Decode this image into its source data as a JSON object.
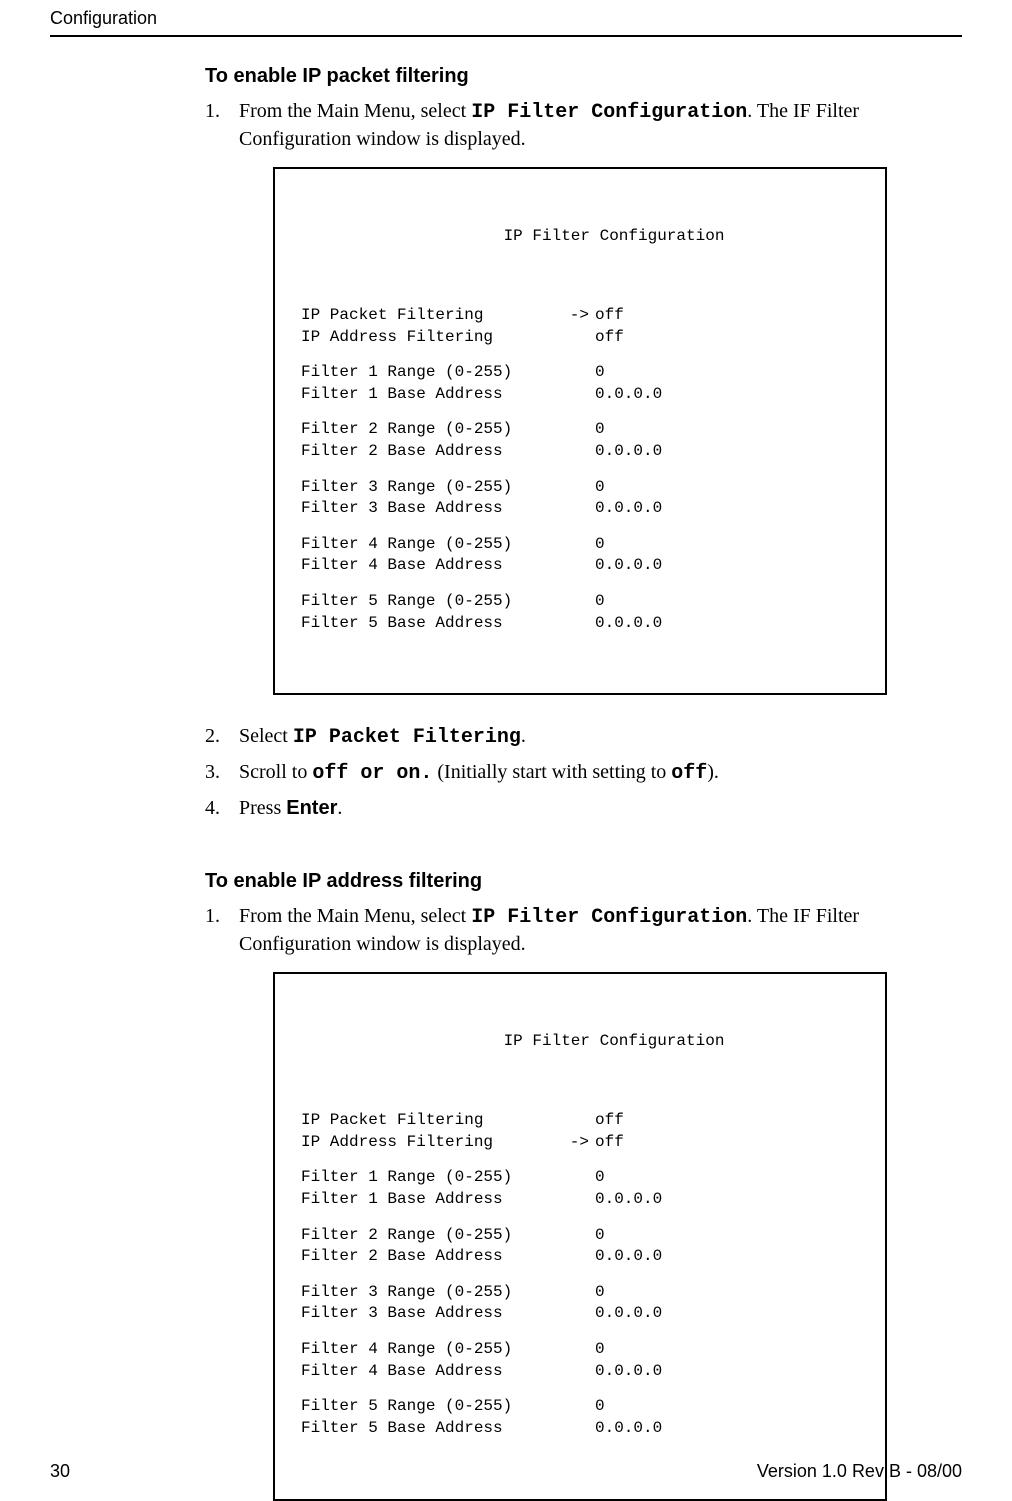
{
  "header": {
    "running_title": "Configuration"
  },
  "section1": {
    "title": "To enable IP packet filtering",
    "step1_a": "From the Main Menu, select ",
    "step1_b": "IP Filter Configuration",
    "step1_c": ". The IF Filter Configuration window is displayed.",
    "step2_a": "Select ",
    "step2_b": "IP Packet Filtering",
    "step2_c": ".",
    "step3_a": "Scroll to ",
    "step3_b": "off",
    "step3_c": " or ",
    "step3_d": "on.",
    "step3_e": " (Initially start with setting to ",
    "step3_f": "off",
    "step3_g": ").",
    "step4_a": "Press ",
    "step4_b": "Enter",
    "step4_c": "."
  },
  "terminal1": {
    "title": "IP Filter Configuration",
    "rows": [
      {
        "label": "IP Packet Filtering",
        "arrow": "->",
        "value": "off"
      },
      {
        "label": "IP Address Filtering",
        "arrow": "",
        "value": "off"
      },
      {
        "gap": true
      },
      {
        "label": "Filter 1 Range (0-255)",
        "arrow": "",
        "value": "0"
      },
      {
        "label": "Filter 1 Base Address",
        "arrow": "",
        "value": "0.0.0.0"
      },
      {
        "gap": true
      },
      {
        "label": "Filter 2 Range (0-255)",
        "arrow": "",
        "value": "0"
      },
      {
        "label": "Filter 2 Base Address",
        "arrow": "",
        "value": "0.0.0.0"
      },
      {
        "gap": true
      },
      {
        "label": "Filter 3 Range (0-255)",
        "arrow": "",
        "value": "0"
      },
      {
        "label": "Filter 3 Base Address",
        "arrow": "",
        "value": "0.0.0.0"
      },
      {
        "gap": true
      },
      {
        "label": "Filter 4 Range (0-255)",
        "arrow": "",
        "value": "0"
      },
      {
        "label": "Filter 4 Base Address",
        "arrow": "",
        "value": "0.0.0.0"
      },
      {
        "gap": true
      },
      {
        "label": "Filter 5 Range (0-255)",
        "arrow": "",
        "value": "0"
      },
      {
        "label": "Filter 5 Base Address",
        "arrow": "",
        "value": "0.0.0.0"
      }
    ]
  },
  "section2": {
    "title": "To enable IP address filtering",
    "step1_a": "From the Main Menu, select ",
    "step1_b": "IP Filter Configuration",
    "step1_c": ". The IF Filter Configuration window is displayed."
  },
  "terminal2": {
    "title": "IP Filter Configuration",
    "rows": [
      {
        "label": "IP Packet Filtering",
        "arrow": "",
        "value": "off"
      },
      {
        "label": "IP Address Filtering",
        "arrow": "->",
        "value": "off"
      },
      {
        "gap": true
      },
      {
        "label": "Filter 1 Range (0-255)",
        "arrow": "",
        "value": "0"
      },
      {
        "label": "Filter 1 Base Address",
        "arrow": "",
        "value": "0.0.0.0"
      },
      {
        "gap": true
      },
      {
        "label": "Filter 2 Range (0-255)",
        "arrow": "",
        "value": "0"
      },
      {
        "label": "Filter 2 Base Address",
        "arrow": "",
        "value": "0.0.0.0"
      },
      {
        "gap": true
      },
      {
        "label": "Filter 3 Range (0-255)",
        "arrow": "",
        "value": "0"
      },
      {
        "label": "Filter 3 Base Address",
        "arrow": "",
        "value": "0.0.0.0"
      },
      {
        "gap": true
      },
      {
        "label": "Filter 4 Range (0-255)",
        "arrow": "",
        "value": "0"
      },
      {
        "label": "Filter 4 Base Address",
        "arrow": "",
        "value": "0.0.0.0"
      },
      {
        "gap": true
      },
      {
        "label": "Filter 5 Range (0-255)",
        "arrow": "",
        "value": "0"
      },
      {
        "label": "Filter 5 Base Address",
        "arrow": "",
        "value": "0.0.0.0"
      }
    ]
  },
  "footer": {
    "page_number": "30",
    "version": "Version 1.0 Rev B - 08/00"
  }
}
